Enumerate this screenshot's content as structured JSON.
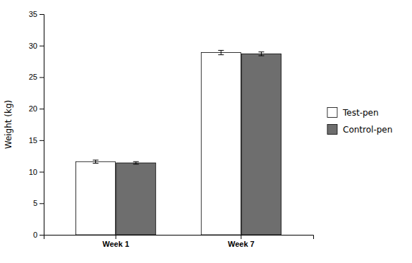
{
  "chart_data": {
    "type": "bar",
    "categories": [
      "Week 1",
      "Week 7"
    ],
    "series": [
      {
        "name": "Test-pen",
        "color": "#ffffff",
        "values": [
          11.6,
          28.9
        ],
        "errors": [
          0.25,
          0.35
        ]
      },
      {
        "name": "Control-pen",
        "color": "#6e6e6e",
        "values": [
          11.4,
          28.7
        ],
        "errors": [
          0.2,
          0.3
        ]
      }
    ],
    "ylabel": "Weight (kg)",
    "ylim": [
      0,
      35
    ],
    "yticks": [
      0,
      5,
      10,
      15,
      20,
      25,
      30,
      35
    ],
    "grid": false,
    "legend": "right"
  }
}
